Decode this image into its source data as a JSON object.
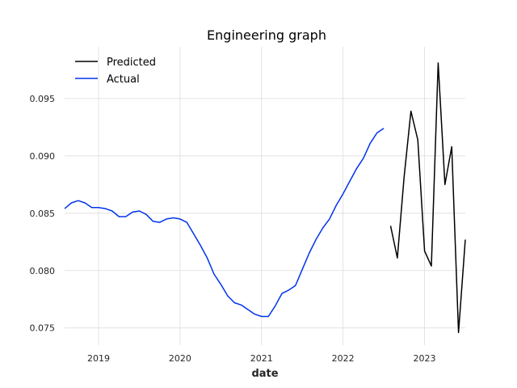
{
  "chart_data": {
    "type": "line",
    "title": "Engineering graph",
    "xlabel": "date",
    "ylabel": "",
    "xlim": [
      "2018-08-01",
      "2023-07-01"
    ],
    "ylim": [
      0.0735,
      0.0995
    ],
    "x_ticks": [
      "2019",
      "2020",
      "2021",
      "2022",
      "2023"
    ],
    "y_ticks": [
      "0.075",
      "0.080",
      "0.085",
      "0.090",
      "0.095"
    ],
    "grid": true,
    "legend_placement": "top-left",
    "series": [
      {
        "name": "Actual",
        "color": "#0033ee",
        "x": [
          "2018-08",
          "2018-09",
          "2018-10",
          "2018-11",
          "2018-12",
          "2019-01",
          "2019-02",
          "2019-03",
          "2019-04",
          "2019-05",
          "2019-06",
          "2019-07",
          "2019-08",
          "2019-09",
          "2019-10",
          "2019-11",
          "2019-12",
          "2020-01",
          "2020-02",
          "2020-03",
          "2020-04",
          "2020-05",
          "2020-06",
          "2020-07",
          "2020-08",
          "2020-09",
          "2020-10",
          "2020-11",
          "2020-12",
          "2021-01",
          "2021-02",
          "2021-03",
          "2021-04",
          "2021-05",
          "2021-06",
          "2021-07",
          "2021-08",
          "2021-09",
          "2021-10",
          "2021-11",
          "2021-12",
          "2022-01",
          "2022-02",
          "2022-03",
          "2022-04",
          "2022-05",
          "2022-06",
          "2022-07"
        ],
        "values": [
          0.0854,
          0.0859,
          0.0861,
          0.0859,
          0.0855,
          0.0855,
          0.0854,
          0.0852,
          0.0847,
          0.0847,
          0.0851,
          0.0852,
          0.0849,
          0.0843,
          0.0842,
          0.0845,
          0.0846,
          0.0845,
          0.0842,
          0.0832,
          0.0822,
          0.0811,
          0.0797,
          0.0788,
          0.0778,
          0.0772,
          0.077,
          0.0766,
          0.0762,
          0.076,
          0.076,
          0.0769,
          0.078,
          0.0783,
          0.0787,
          0.0801,
          0.0815,
          0.0827,
          0.0837,
          0.0845,
          0.0857,
          0.0867,
          0.0878,
          0.0889,
          0.0898,
          0.0911,
          0.092,
          0.0924
        ]
      },
      {
        "name": "Predicted",
        "color": "#000000",
        "x": [
          "2022-08",
          "2022-09",
          "2022-10",
          "2022-11",
          "2022-12",
          "2023-01",
          "2023-02",
          "2023-03",
          "2023-04",
          "2023-05",
          "2023-06",
          "2023-07"
        ],
        "values": [
          0.0839,
          0.0811,
          0.0882,
          0.0939,
          0.0914,
          0.0817,
          0.0804,
          0.0981,
          0.0875,
          0.0908,
          0.0746,
          0.0827
        ]
      }
    ]
  }
}
